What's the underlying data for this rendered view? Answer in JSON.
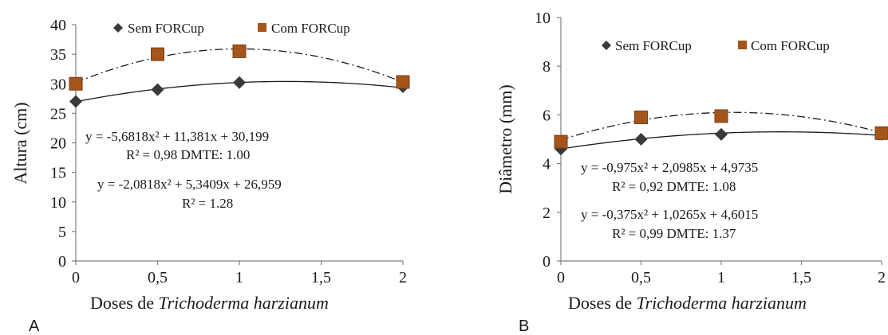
{
  "colors": {
    "sem": "#3a3a3a",
    "com": "#a5551c",
    "com_edge": "#7a3d12",
    "axis": "#808080"
  },
  "legend": {
    "sem": "Sem FORCup",
    "com": "Com FORCup"
  },
  "chart_data": [
    {
      "panel_label": "A",
      "type": "scatter",
      "ylabel": "Altura (cm)",
      "xlabel_prefix": "Doses de ",
      "xlabel_italic": "Trichoderma harzianum",
      "xlim": [
        0,
        2
      ],
      "ylim": [
        0,
        40
      ],
      "xticks": [
        0,
        0.5,
        1,
        1.5,
        2
      ],
      "xtick_labels": [
        "0",
        "0,5",
        "1",
        "1,5",
        "2"
      ],
      "yticks": [
        0,
        5,
        10,
        15,
        20,
        25,
        30,
        35,
        40
      ],
      "series": [
        {
          "name": "Sem FORCup",
          "marker": "diamond",
          "x": [
            0,
            0.5,
            1,
            2
          ],
          "y": [
            27,
            29,
            30.2,
            29.5
          ],
          "fit": {
            "a": -2.0818,
            "b": 5.3409,
            "c": 26.959,
            "style": "solid"
          }
        },
        {
          "name": "Com FORCup",
          "marker": "square",
          "x": [
            0,
            0.5,
            1,
            2
          ],
          "y": [
            30,
            35,
            35.5,
            30.3
          ],
          "fit": {
            "a": -5.6818,
            "b": 11.381,
            "c": 30.199,
            "style": "dashdot"
          }
        }
      ],
      "annotations": [
        "y = -5,6818x² + 11,381x + 30,199",
        "R² = 0,98 DMTE: 1.00",
        "y = -2,0818x² + 5,3409x + 26,959",
        "R² = 1.28"
      ]
    },
    {
      "panel_label": "B",
      "type": "scatter",
      "ylabel": "Diâmetro (mm)",
      "xlabel_prefix": "Doses de ",
      "xlabel_italic": "Trichoderma harzianum",
      "xlim": [
        0,
        2
      ],
      "ylim": [
        0,
        10
      ],
      "xticks": [
        0,
        0.5,
        1,
        1.5,
        2
      ],
      "xtick_labels": [
        "0",
        "0,5",
        "1",
        "1,5",
        "2"
      ],
      "yticks": [
        0,
        2,
        4,
        6,
        8,
        10
      ],
      "series": [
        {
          "name": "Sem FORCup",
          "marker": "diamond",
          "x": [
            0,
            0.5,
            1,
            2
          ],
          "y": [
            4.6,
            5.0,
            5.2,
            5.2
          ],
          "fit": {
            "a": -0.375,
            "b": 1.0265,
            "c": 4.6015,
            "style": "solid"
          }
        },
        {
          "name": "Com FORCup",
          "marker": "square",
          "x": [
            0,
            0.5,
            1,
            2
          ],
          "y": [
            4.9,
            5.9,
            5.95,
            5.25
          ],
          "fit": {
            "a": -0.975,
            "b": 2.0985,
            "c": 4.9735,
            "style": "dashdot"
          }
        }
      ],
      "annotations": [
        "y = -0,975x² + 2,0985x + 4,9735",
        "R² = 0,92 DMTE: 1.08",
        "y = -0,375x² + 1,0265x + 4,6015",
        "R² = 0,99 DMTE: 1.37"
      ]
    }
  ]
}
